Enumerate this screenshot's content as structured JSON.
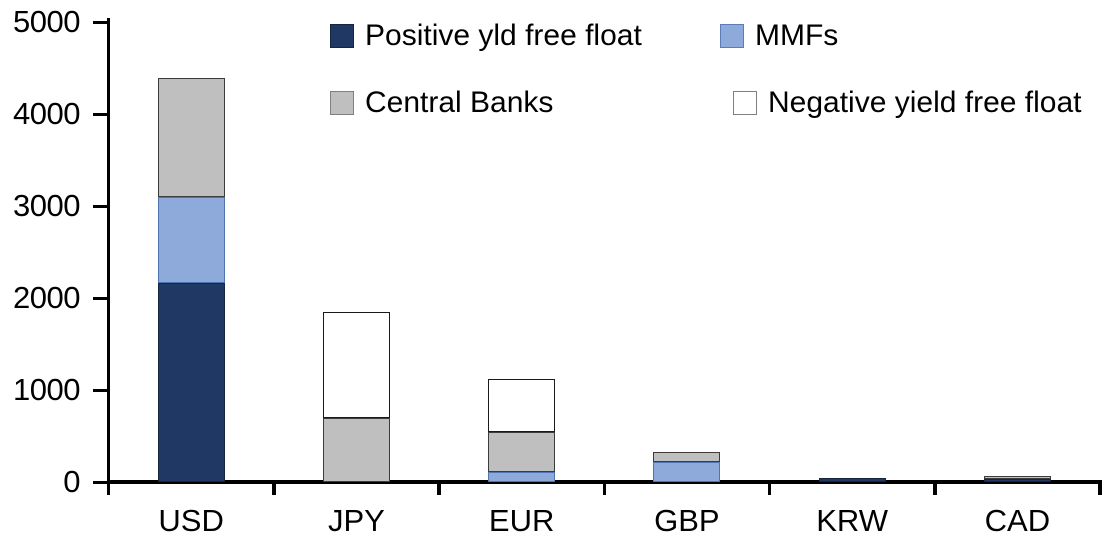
{
  "chart_data": {
    "type": "bar",
    "stacked": true,
    "title": "",
    "xlabel": "",
    "ylabel": "",
    "categories": [
      "USD",
      "JPY",
      "EUR",
      "GBP",
      "KRW",
      "CAD"
    ],
    "series": [
      {
        "name": "Positive yld free float",
        "color": "#1F3864",
        "border": "#17263F",
        "swatch_border": "#17263F",
        "values": [
          2160,
          0,
          0,
          0,
          45,
          35
        ]
      },
      {
        "name": "MMFs",
        "color": "#8EAADB",
        "border": "#4F74B0",
        "swatch_border": "#5B7CB8",
        "values": [
          940,
          0,
          110,
          215,
          0,
          0
        ]
      },
      {
        "name": "Central Banks",
        "color": "#BFBFBF",
        "border": "#3C3C3C",
        "swatch_border": "#808080",
        "values": [
          1290,
          700,
          430,
          115,
          0,
          35
        ]
      },
      {
        "name": "Negative yield free float",
        "color": "#FFFFFF",
        "border": "#1A1A1A",
        "swatch_border": "#808080",
        "values": [
          0,
          1145,
          580,
          0,
          0,
          0
        ]
      }
    ],
    "ylim": [
      0,
      5000
    ],
    "ytick_interval": 1000,
    "yticks": [
      "0",
      "1000",
      "2000",
      "3000",
      "4000",
      "5000"
    ],
    "legend_position": "top",
    "grid": false,
    "axis_color": "#000000",
    "background_color": "#FFFFFF"
  }
}
